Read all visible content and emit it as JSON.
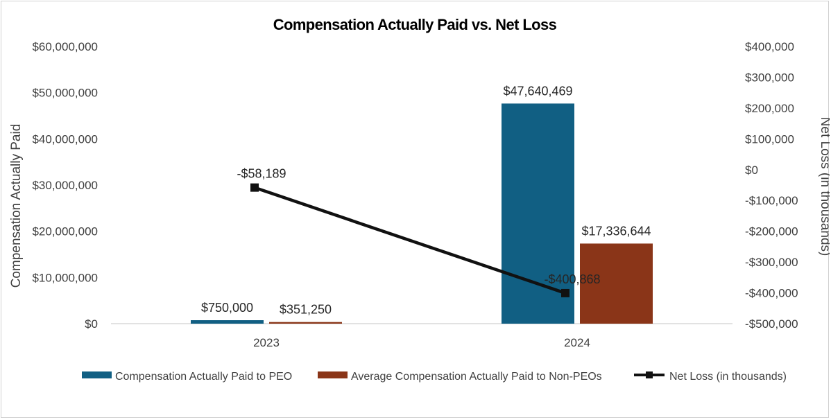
{
  "chart_data": {
    "type": "bar",
    "title": "Compensation Actually Paid vs. Net Loss",
    "categories": [
      "2023",
      "2024"
    ],
    "left_axis": {
      "label": "Compensation Actually Paid",
      "min": 0,
      "max": 60000000,
      "ticks": [
        0,
        10000000,
        20000000,
        30000000,
        40000000,
        50000000,
        60000000
      ],
      "tick_labels": [
        "$0",
        "$10,000,000",
        "$20,000,000",
        "$30,000,000",
        "$40,000,000",
        "$50,000,000",
        "$60,000,000"
      ]
    },
    "right_axis": {
      "label": "Net Loss (in thousands)",
      "min": -500000,
      "max": 400000,
      "ticks": [
        -500000,
        -400000,
        -300000,
        -200000,
        -100000,
        0,
        100000,
        200000,
        300000,
        400000
      ],
      "tick_labels": [
        "-$500,000",
        "-$400,000",
        "-$300,000",
        "-$200,000",
        "-$100,000",
        "$0",
        "$100,000",
        "$200,000",
        "$300,000",
        "$400,000"
      ]
    },
    "series": [
      {
        "name": "Compensation Actually Paid to PEO",
        "type": "bar",
        "axis": "left",
        "color": "#115f83",
        "values": [
          750000,
          47640469
        ],
        "labels": [
          "$750,000",
          "$47,640,469"
        ]
      },
      {
        "name": "Average Compensation Actually Paid to Non-PEOs",
        "type": "bar",
        "axis": "left",
        "color": "#8a3518",
        "values": [
          351250,
          17336644
        ],
        "labels": [
          "$351,250",
          "$17,336,644"
        ]
      },
      {
        "name": "Net Loss (in thousands)",
        "type": "line",
        "axis": "right",
        "color": "#111111",
        "values": [
          -58189,
          -400868
        ],
        "labels": [
          "-$58,189",
          "-$400,868"
        ]
      }
    ],
    "grid": false,
    "legend_position": "bottom"
  }
}
